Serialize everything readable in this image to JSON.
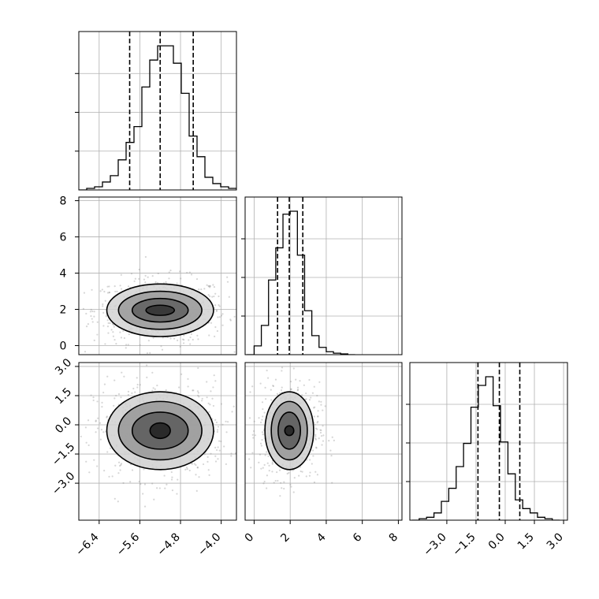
{
  "chart_data": {
    "type": "corner",
    "parameters": [
      {
        "range": [
          -6.8,
          -3.7
        ],
        "ticks": [
          "−6.4",
          "−5.6",
          "−4.8",
          "−4.0"
        ],
        "tick_values": [
          -6.4,
          -5.6,
          -4.8,
          -4.0
        ],
        "quantiles": [
          -5.8,
          -5.2,
          -4.55
        ],
        "histogram": {
          "edges_start": -6.8,
          "bin_width": 0.155,
          "counts": [
            0.0,
            0.01,
            0.02,
            0.05,
            0.09,
            0.19,
            0.3,
            0.4,
            0.65,
            0.82,
            0.91,
            0.91,
            0.8,
            0.61,
            0.34,
            0.21,
            0.08,
            0.04,
            0.02,
            0.01
          ]
        }
      },
      {
        "range": [
          -0.5,
          8.2
        ],
        "ticks": [
          "0",
          "2",
          "4",
          "6",
          "8"
        ],
        "tick_values": [
          0,
          2,
          4,
          6,
          8
        ],
        "quantiles": [
          1.3,
          1.95,
          2.7
        ],
        "histogram": {
          "edges_start": -0.4,
          "bin_width": 0.4,
          "counts": [
            0.0,
            0.06,
            0.2,
            0.51,
            0.73,
            0.96,
            0.98,
            0.68,
            0.3,
            0.13,
            0.05,
            0.02,
            0.01,
            0.005,
            0.0
          ]
        }
      },
      {
        "range": [
          -4.9,
          3.2
        ],
        "ticks": [
          "−3.0",
          "−1.5",
          "0.0",
          "1.5",
          "3.0"
        ],
        "tick_values": [
          -3.0,
          -1.5,
          0.0,
          1.5,
          3.0
        ],
        "quantiles": [
          -1.4,
          -0.3,
          0.75
        ],
        "histogram": {
          "edges_start": -4.8,
          "bin_width": 0.38,
          "counts": [
            0.0,
            0.01,
            0.02,
            0.05,
            0.13,
            0.22,
            0.37,
            0.53,
            0.78,
            0.93,
            0.99,
            0.79,
            0.54,
            0.32,
            0.14,
            0.08,
            0.05,
            0.02,
            0.01,
            0.0
          ]
        }
      }
    ],
    "pairs": [
      {
        "x_param": 0,
        "y_param": 1,
        "center": [
          -5.2,
          1.95
        ],
        "contours": [
          {
            "level": 1,
            "rx": 0.28,
            "ry": 0.28,
            "shade": "#303030"
          },
          {
            "level": 2,
            "rx": 0.55,
            "ry": 0.65,
            "shade": "#606060"
          },
          {
            "level": 3,
            "rx": 0.82,
            "ry": 1.05,
            "shade": "#9a9a9a"
          },
          {
            "level": 4,
            "rx": 1.05,
            "ry": 1.45,
            "shade": "#d2d2d2"
          }
        ]
      },
      {
        "x_param": 0,
        "y_param": 2,
        "center": [
          -5.2,
          -0.3
        ],
        "contours": [
          {
            "level": 1,
            "rx": 0.2,
            "ry": 0.4,
            "shade": "#202020"
          },
          {
            "level": 2,
            "rx": 0.55,
            "ry": 0.95,
            "shade": "#5a5a5a"
          },
          {
            "level": 3,
            "rx": 0.82,
            "ry": 1.5,
            "shade": "#989898"
          },
          {
            "level": 4,
            "rx": 1.05,
            "ry": 2.0,
            "shade": "#d0d0d0"
          }
        ]
      },
      {
        "x_param": 1,
        "y_param": 2,
        "center": [
          1.95,
          -0.3
        ],
        "contours": [
          {
            "level": 1,
            "rx": 0.25,
            "ry": 0.25,
            "shade": "#202020"
          },
          {
            "level": 2,
            "rx": 0.62,
            "ry": 0.95,
            "shade": "#5a5a5a"
          },
          {
            "level": 3,
            "rx": 1.0,
            "ry": 1.5,
            "shade": "#989898"
          },
          {
            "level": 4,
            "rx": 1.35,
            "ry": 2.0,
            "shade": "#d0d0d0"
          }
        ]
      }
    ],
    "grid": true
  }
}
